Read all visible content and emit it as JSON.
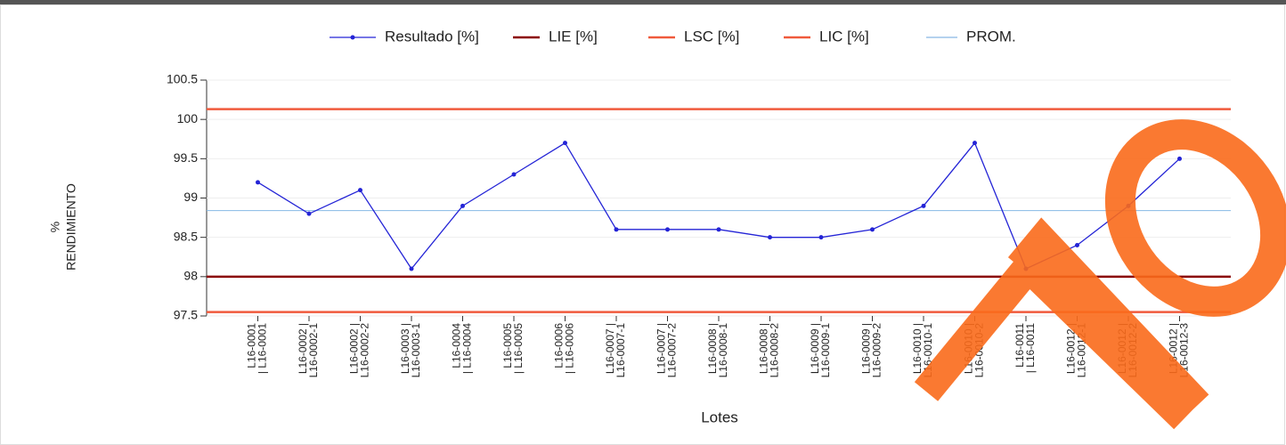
{
  "chart_data": {
    "type": "line",
    "x_label": "Lotes",
    "y_label": [
      "%",
      "RENDIMIENTO"
    ],
    "categories": [
      [
        "L16-0001",
        "| L16-0001"
      ],
      [
        "L16-0002 |",
        "L16-0002-1"
      ],
      [
        "L16-0002 |",
        "L16-0002-2"
      ],
      [
        "L16-0003 |",
        "L16-0003-1"
      ],
      [
        "L16-0004",
        "| L16-0004"
      ],
      [
        "L16-0005",
        "| L16-0005"
      ],
      [
        "L16-0006",
        "| L16-0006"
      ],
      [
        "L16-0007 |",
        "L16-0007-1"
      ],
      [
        "L16-0007 |",
        "L16-0007-2"
      ],
      [
        "L16-0008 |",
        "L16-0008-1"
      ],
      [
        "L16-0008 |",
        "L16-0008-2"
      ],
      [
        "L16-0009 |",
        "L16-0009-1"
      ],
      [
        "L16-0009 |",
        "L16-0009-2"
      ],
      [
        "L16-0010 |",
        "L16-0010-1"
      ],
      [
        "L16-0010 |",
        "L16-0010-2"
      ],
      [
        "L16-0011",
        "| L16-0011"
      ],
      [
        "L16-0012 |",
        "L16-0012-1"
      ],
      [
        "L16-0012 |",
        "L16-0012-2"
      ],
      [
        "L16-0012 |",
        "L16-0012-3"
      ]
    ],
    "series": [
      {
        "name": "Resultado [%]",
        "color": "#2424d6",
        "values": [
          99.2,
          98.8,
          99.1,
          98.1,
          98.9,
          99.3,
          99.7,
          98.6,
          98.6,
          98.6,
          98.5,
          98.5,
          98.6,
          98.9,
          99.7,
          98.1,
          98.4,
          98.9,
          99.5
        ]
      },
      {
        "name": "LIE [%]",
        "color": "#8b0000",
        "value": 98
      },
      {
        "name": "LSC [%]",
        "color": "#f05a3c",
        "value": 100.13
      },
      {
        "name": "LIC [%]",
        "color": "#f05a3c",
        "value": 97.55
      },
      {
        "name": "PROM.",
        "color": "#86b8e4",
        "value": 98.84
      }
    ],
    "ylim": [
      97.5,
      100.5
    ],
    "yticks": [
      97.5,
      98,
      98.5,
      99,
      99.5,
      100,
      100.5
    ]
  }
}
